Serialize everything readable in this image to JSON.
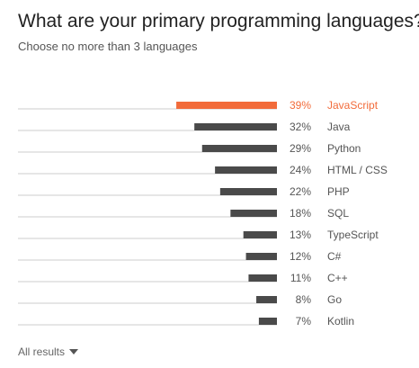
{
  "header": {
    "title": "What are your primary programming languages?",
    "subtitle": "Choose no more than 3 languages"
  },
  "footer": {
    "all_results_label": "All results",
    "caret_icon": "caret-down-icon"
  },
  "colors": {
    "highlight": "#f26b3a",
    "bar": "#4a4a4a",
    "baseline": "#cccccc",
    "label": "#555555"
  },
  "chart_data": {
    "type": "bar",
    "orientation": "horizontal",
    "categories": [
      "JavaScript",
      "Java",
      "Python",
      "HTML / CSS",
      "PHP",
      "SQL",
      "TypeScript",
      "C#",
      "C++",
      "Go",
      "Kotlin"
    ],
    "values": [
      39,
      32,
      29,
      24,
      22,
      18,
      13,
      12,
      11,
      8,
      7
    ],
    "value_labels": [
      "39%",
      "32%",
      "29%",
      "24%",
      "22%",
      "18%",
      "13%",
      "12%",
      "11%",
      "8%",
      "7%"
    ],
    "highlighted_category": "JavaScript",
    "xlim": [
      0,
      100
    ],
    "grid": false
  }
}
